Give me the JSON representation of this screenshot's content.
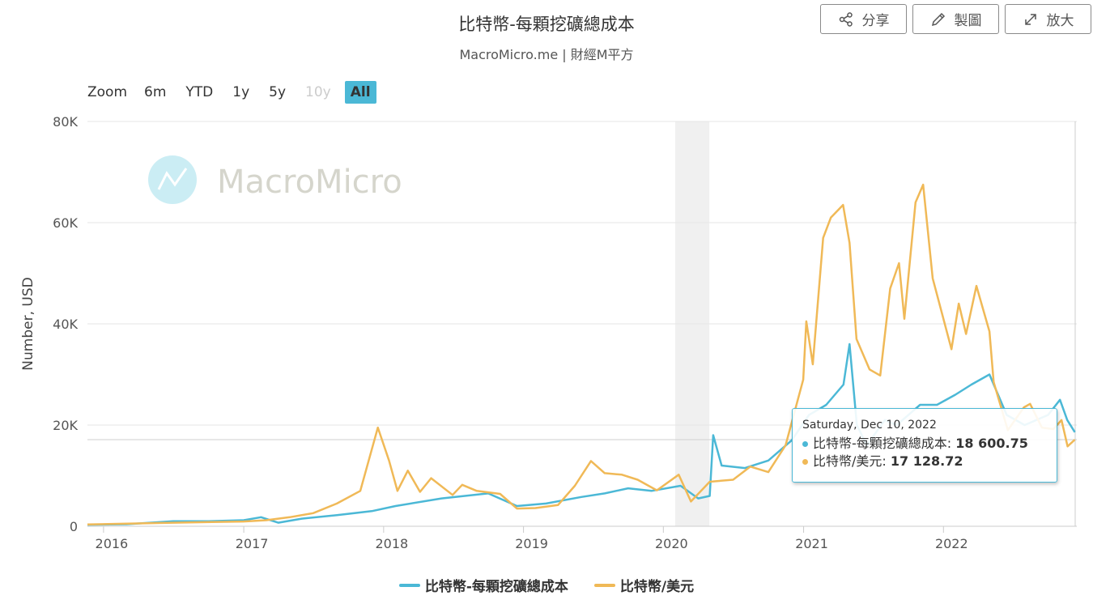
{
  "header": {
    "title": "比特幣-每顆挖礦總成本",
    "subtitle": "MacroMicro.me | 財經M平方"
  },
  "toolbar": {
    "share_label": "分享",
    "draw_label": "製圖",
    "expand_label": "放大"
  },
  "zoom": {
    "label": "Zoom",
    "options": [
      "6m",
      "YTD",
      "1y",
      "5y",
      "10y",
      "All"
    ],
    "disabled": "10y",
    "active": "All"
  },
  "watermark": "MacroMicro",
  "tooltip": {
    "date": "Saturday, Dec 10, 2022",
    "rows": [
      {
        "label": "比特幣-每顆挖礦總成本: ",
        "value": "18 600.75",
        "color": "#4bb8d6"
      },
      {
        "label": "比特幣/美元: ",
        "value": "17 128.72",
        "color": "#f0b957"
      }
    ]
  },
  "chart_data": {
    "type": "line",
    "ylabel": "Number, USD",
    "ylim": [
      0,
      80000
    ],
    "yticks": [
      0,
      20000,
      40000,
      60000,
      80000
    ],
    "ytick_labels": [
      "0",
      "20K",
      "40K",
      "60K",
      "80K"
    ],
    "xlim": [
      "2015-11-20",
      "2022-12-15"
    ],
    "xticks": [
      "2016",
      "2017",
      "2018",
      "2019",
      "2020",
      "2021",
      "2022"
    ],
    "grid": true,
    "legend_position": "bottom",
    "shaded_range": [
      "2020-02-01",
      "2020-04-30"
    ],
    "series": [
      {
        "name": "比特幣-每顆挖礦總成本",
        "color": "#4bb8d6",
        "points": [
          [
            "2015-11-20",
            300
          ],
          [
            "2016-03-01",
            400
          ],
          [
            "2016-07-01",
            1000
          ],
          [
            "2016-10-01",
            1000
          ],
          [
            "2017-01-01",
            1200
          ],
          [
            "2017-02-15",
            1800
          ],
          [
            "2017-04-01",
            700
          ],
          [
            "2017-06-01",
            1500
          ],
          [
            "2017-09-01",
            2200
          ],
          [
            "2017-12-01",
            3000
          ],
          [
            "2018-02-01",
            4000
          ],
          [
            "2018-06-01",
            5500
          ],
          [
            "2018-10-01",
            6500
          ],
          [
            "2018-12-15",
            4000
          ],
          [
            "2019-03-01",
            4500
          ],
          [
            "2019-06-01",
            5800
          ],
          [
            "2019-08-01",
            6500
          ],
          [
            "2019-10-01",
            7500
          ],
          [
            "2019-12-01",
            7000
          ],
          [
            "2020-02-15",
            8000
          ],
          [
            "2020-04-01",
            5500
          ],
          [
            "2020-05-01",
            6000
          ],
          [
            "2020-05-10",
            18000
          ],
          [
            "2020-06-01",
            12000
          ],
          [
            "2020-08-01",
            11500
          ],
          [
            "2020-10-01",
            13000
          ],
          [
            "2020-12-01",
            17000
          ],
          [
            "2021-01-15",
            22000
          ],
          [
            "2021-03-01",
            24000
          ],
          [
            "2021-04-15",
            28000
          ],
          [
            "2021-05-01",
            36000
          ],
          [
            "2021-05-20",
            20000
          ],
          [
            "2021-06-15",
            16000
          ],
          [
            "2021-08-01",
            21000
          ],
          [
            "2021-09-01",
            20000
          ],
          [
            "2021-11-01",
            24000
          ],
          [
            "2021-12-15",
            24000
          ],
          [
            "2022-02-01",
            26000
          ],
          [
            "2022-03-15",
            28000
          ],
          [
            "2022-05-01",
            30000
          ],
          [
            "2022-06-15",
            22000
          ],
          [
            "2022-08-01",
            20000
          ],
          [
            "2022-10-01",
            22000
          ],
          [
            "2022-11-01",
            25000
          ],
          [
            "2022-11-20",
            21000
          ],
          [
            "2022-12-10",
            18600
          ]
        ]
      },
      {
        "name": "比特幣/美元",
        "color": "#f0b957",
        "points": [
          [
            "2015-11-20",
            350
          ],
          [
            "2016-06-01",
            650
          ],
          [
            "2016-12-31",
            950
          ],
          [
            "2017-03-01",
            1200
          ],
          [
            "2017-05-01",
            1800
          ],
          [
            "2017-07-01",
            2600
          ],
          [
            "2017-09-01",
            4500
          ],
          [
            "2017-11-01",
            7000
          ],
          [
            "2017-12-17",
            19500
          ],
          [
            "2018-01-15",
            13000
          ],
          [
            "2018-02-06",
            7000
          ],
          [
            "2018-03-05",
            11000
          ],
          [
            "2018-04-06",
            6800
          ],
          [
            "2018-05-05",
            9500
          ],
          [
            "2018-06-30",
            6200
          ],
          [
            "2018-07-25",
            8200
          ],
          [
            "2018-09-01",
            7000
          ],
          [
            "2018-11-01",
            6400
          ],
          [
            "2018-12-15",
            3500
          ],
          [
            "2019-02-01",
            3600
          ],
          [
            "2019-04-01",
            4200
          ],
          [
            "2019-05-15",
            8000
          ],
          [
            "2019-06-26",
            12900
          ],
          [
            "2019-08-01",
            10500
          ],
          [
            "2019-09-15",
            10200
          ],
          [
            "2019-10-26",
            9200
          ],
          [
            "2019-12-15",
            7100
          ],
          [
            "2020-02-10",
            10200
          ],
          [
            "2020-03-13",
            4900
          ],
          [
            "2020-05-01",
            8800
          ],
          [
            "2020-07-01",
            9200
          ],
          [
            "2020-08-15",
            11800
          ],
          [
            "2020-10-01",
            10700
          ],
          [
            "2020-11-15",
            16000
          ],
          [
            "2020-12-31",
            29000
          ],
          [
            "2021-01-08",
            40500
          ],
          [
            "2021-01-25",
            32000
          ],
          [
            "2021-02-21",
            57000
          ],
          [
            "2021-03-13",
            61000
          ],
          [
            "2021-04-14",
            63500
          ],
          [
            "2021-05-01",
            56000
          ],
          [
            "2021-05-19",
            37000
          ],
          [
            "2021-06-22",
            31000
          ],
          [
            "2021-07-20",
            29800
          ],
          [
            "2021-08-15",
            47000
          ],
          [
            "2021-09-07",
            52000
          ],
          [
            "2021-09-21",
            41000
          ],
          [
            "2021-10-20",
            64000
          ],
          [
            "2021-11-09",
            67500
          ],
          [
            "2021-12-04",
            49000
          ],
          [
            "2022-01-22",
            35000
          ],
          [
            "2022-02-10",
            44000
          ],
          [
            "2022-03-01",
            38000
          ],
          [
            "2022-03-28",
            47500
          ],
          [
            "2022-05-01",
            38500
          ],
          [
            "2022-05-12",
            28500
          ],
          [
            "2022-06-18",
            19000
          ],
          [
            "2022-07-30",
            23500
          ],
          [
            "2022-08-15",
            24200
          ],
          [
            "2022-09-15",
            19500
          ],
          [
            "2022-10-15",
            19200
          ],
          [
            "2022-11-05",
            21000
          ],
          [
            "2022-11-21",
            15800
          ],
          [
            "2022-12-10",
            17128
          ]
        ]
      }
    ]
  }
}
